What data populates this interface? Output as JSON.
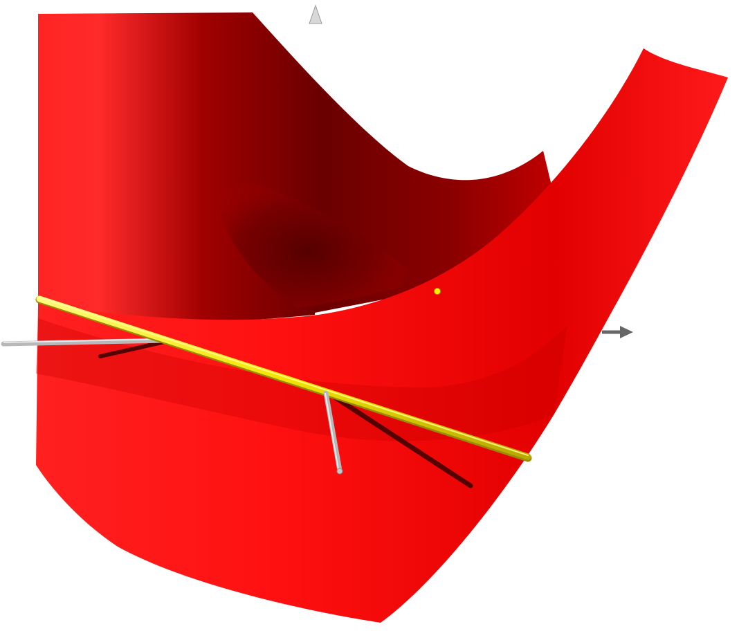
{
  "scene": {
    "surface_color": "#ff1a1a",
    "surface_shadow_color": "#5e0000",
    "line_color": "#f2e600",
    "axis_color": "#bdbdbd",
    "axis_shadow_color": "#555555",
    "point_color": "#ffee00"
  }
}
